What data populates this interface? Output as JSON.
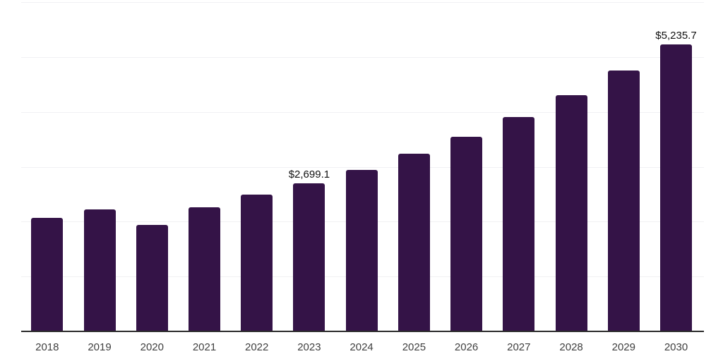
{
  "chart_data": {
    "type": "bar",
    "title": "",
    "xlabel": "",
    "ylabel": "",
    "categories": [
      "2018",
      "2019",
      "2020",
      "2021",
      "2022",
      "2023",
      "2024",
      "2025",
      "2026",
      "2027",
      "2028",
      "2029",
      "2030"
    ],
    "values": [
      2070,
      2225,
      1940,
      2260,
      2490,
      2699.1,
      2945,
      3240,
      3545,
      3900,
      4300,
      4750,
      5235.7
    ],
    "value_labels": [
      {
        "category": "2023",
        "text": "$2,699.1"
      },
      {
        "category": "2030",
        "text": "$5,235.7"
      }
    ],
    "ylim": [
      0,
      6000
    ],
    "gridline_interval": 1000,
    "grid": true,
    "legend": false,
    "colors": {
      "bar": "#341347",
      "axis_line": "#2a2a2a",
      "gridline": "#f1f1f3",
      "value_label_text": "#111111",
      "x_tick_text": "#3f3f3f",
      "background": "#ffffff"
    }
  }
}
